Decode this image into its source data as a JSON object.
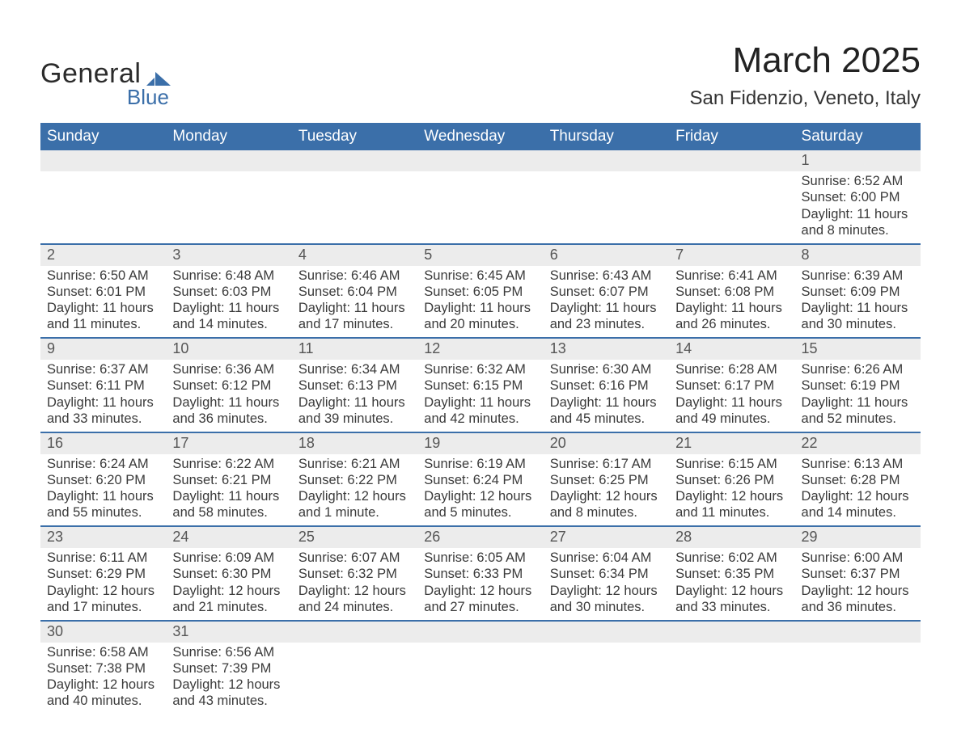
{
  "logo": {
    "general": "General",
    "blue": "Blue"
  },
  "title": "March 2025",
  "location": "San Fidenzio, Veneto, Italy",
  "columns": [
    "Sunday",
    "Monday",
    "Tuesday",
    "Wednesday",
    "Thursday",
    "Friday",
    "Saturday"
  ],
  "colors": {
    "header_bg": "#3b6fa9",
    "header_fg": "#ffffff",
    "daynum_bg": "#ececec",
    "row_divider": "#3b6fa9",
    "text": "#3a3a3a",
    "title": "#222222"
  },
  "typography": {
    "title_fontsize": 44,
    "location_fontsize": 24,
    "header_fontsize": 19,
    "daynum_fontsize": 18,
    "content_fontsize": 16.5
  },
  "weeks": [
    [
      {
        "n": "",
        "sunrise": "",
        "sunset": "",
        "daylight": ""
      },
      {
        "n": "",
        "sunrise": "",
        "sunset": "",
        "daylight": ""
      },
      {
        "n": "",
        "sunrise": "",
        "sunset": "",
        "daylight": ""
      },
      {
        "n": "",
        "sunrise": "",
        "sunset": "",
        "daylight": ""
      },
      {
        "n": "",
        "sunrise": "",
        "sunset": "",
        "daylight": ""
      },
      {
        "n": "",
        "sunrise": "",
        "sunset": "",
        "daylight": ""
      },
      {
        "n": "1",
        "sunrise": "Sunrise: 6:52 AM",
        "sunset": "Sunset: 6:00 PM",
        "daylight": "Daylight: 11 hours and 8 minutes."
      }
    ],
    [
      {
        "n": "2",
        "sunrise": "Sunrise: 6:50 AM",
        "sunset": "Sunset: 6:01 PM",
        "daylight": "Daylight: 11 hours and 11 minutes."
      },
      {
        "n": "3",
        "sunrise": "Sunrise: 6:48 AM",
        "sunset": "Sunset: 6:03 PM",
        "daylight": "Daylight: 11 hours and 14 minutes."
      },
      {
        "n": "4",
        "sunrise": "Sunrise: 6:46 AM",
        "sunset": "Sunset: 6:04 PM",
        "daylight": "Daylight: 11 hours and 17 minutes."
      },
      {
        "n": "5",
        "sunrise": "Sunrise: 6:45 AM",
        "sunset": "Sunset: 6:05 PM",
        "daylight": "Daylight: 11 hours and 20 minutes."
      },
      {
        "n": "6",
        "sunrise": "Sunrise: 6:43 AM",
        "sunset": "Sunset: 6:07 PM",
        "daylight": "Daylight: 11 hours and 23 minutes."
      },
      {
        "n": "7",
        "sunrise": "Sunrise: 6:41 AM",
        "sunset": "Sunset: 6:08 PM",
        "daylight": "Daylight: 11 hours and 26 minutes."
      },
      {
        "n": "8",
        "sunrise": "Sunrise: 6:39 AM",
        "sunset": "Sunset: 6:09 PM",
        "daylight": "Daylight: 11 hours and 30 minutes."
      }
    ],
    [
      {
        "n": "9",
        "sunrise": "Sunrise: 6:37 AM",
        "sunset": "Sunset: 6:11 PM",
        "daylight": "Daylight: 11 hours and 33 minutes."
      },
      {
        "n": "10",
        "sunrise": "Sunrise: 6:36 AM",
        "sunset": "Sunset: 6:12 PM",
        "daylight": "Daylight: 11 hours and 36 minutes."
      },
      {
        "n": "11",
        "sunrise": "Sunrise: 6:34 AM",
        "sunset": "Sunset: 6:13 PM",
        "daylight": "Daylight: 11 hours and 39 minutes."
      },
      {
        "n": "12",
        "sunrise": "Sunrise: 6:32 AM",
        "sunset": "Sunset: 6:15 PM",
        "daylight": "Daylight: 11 hours and 42 minutes."
      },
      {
        "n": "13",
        "sunrise": "Sunrise: 6:30 AM",
        "sunset": "Sunset: 6:16 PM",
        "daylight": "Daylight: 11 hours and 45 minutes."
      },
      {
        "n": "14",
        "sunrise": "Sunrise: 6:28 AM",
        "sunset": "Sunset: 6:17 PM",
        "daylight": "Daylight: 11 hours and 49 minutes."
      },
      {
        "n": "15",
        "sunrise": "Sunrise: 6:26 AM",
        "sunset": "Sunset: 6:19 PM",
        "daylight": "Daylight: 11 hours and 52 minutes."
      }
    ],
    [
      {
        "n": "16",
        "sunrise": "Sunrise: 6:24 AM",
        "sunset": "Sunset: 6:20 PM",
        "daylight": "Daylight: 11 hours and 55 minutes."
      },
      {
        "n": "17",
        "sunrise": "Sunrise: 6:22 AM",
        "sunset": "Sunset: 6:21 PM",
        "daylight": "Daylight: 11 hours and 58 minutes."
      },
      {
        "n": "18",
        "sunrise": "Sunrise: 6:21 AM",
        "sunset": "Sunset: 6:22 PM",
        "daylight": "Daylight: 12 hours and 1 minute."
      },
      {
        "n": "19",
        "sunrise": "Sunrise: 6:19 AM",
        "sunset": "Sunset: 6:24 PM",
        "daylight": "Daylight: 12 hours and 5 minutes."
      },
      {
        "n": "20",
        "sunrise": "Sunrise: 6:17 AM",
        "sunset": "Sunset: 6:25 PM",
        "daylight": "Daylight: 12 hours and 8 minutes."
      },
      {
        "n": "21",
        "sunrise": "Sunrise: 6:15 AM",
        "sunset": "Sunset: 6:26 PM",
        "daylight": "Daylight: 12 hours and 11 minutes."
      },
      {
        "n": "22",
        "sunrise": "Sunrise: 6:13 AM",
        "sunset": "Sunset: 6:28 PM",
        "daylight": "Daylight: 12 hours and 14 minutes."
      }
    ],
    [
      {
        "n": "23",
        "sunrise": "Sunrise: 6:11 AM",
        "sunset": "Sunset: 6:29 PM",
        "daylight": "Daylight: 12 hours and 17 minutes."
      },
      {
        "n": "24",
        "sunrise": "Sunrise: 6:09 AM",
        "sunset": "Sunset: 6:30 PM",
        "daylight": "Daylight: 12 hours and 21 minutes."
      },
      {
        "n": "25",
        "sunrise": "Sunrise: 6:07 AM",
        "sunset": "Sunset: 6:32 PM",
        "daylight": "Daylight: 12 hours and 24 minutes."
      },
      {
        "n": "26",
        "sunrise": "Sunrise: 6:05 AM",
        "sunset": "Sunset: 6:33 PM",
        "daylight": "Daylight: 12 hours and 27 minutes."
      },
      {
        "n": "27",
        "sunrise": "Sunrise: 6:04 AM",
        "sunset": "Sunset: 6:34 PM",
        "daylight": "Daylight: 12 hours and 30 minutes."
      },
      {
        "n": "28",
        "sunrise": "Sunrise: 6:02 AM",
        "sunset": "Sunset: 6:35 PM",
        "daylight": "Daylight: 12 hours and 33 minutes."
      },
      {
        "n": "29",
        "sunrise": "Sunrise: 6:00 AM",
        "sunset": "Sunset: 6:37 PM",
        "daylight": "Daylight: 12 hours and 36 minutes."
      }
    ],
    [
      {
        "n": "30",
        "sunrise": "Sunrise: 6:58 AM",
        "sunset": "Sunset: 7:38 PM",
        "daylight": "Daylight: 12 hours and 40 minutes."
      },
      {
        "n": "31",
        "sunrise": "Sunrise: 6:56 AM",
        "sunset": "Sunset: 7:39 PM",
        "daylight": "Daylight: 12 hours and 43 minutes."
      },
      {
        "n": "",
        "sunrise": "",
        "sunset": "",
        "daylight": ""
      },
      {
        "n": "",
        "sunrise": "",
        "sunset": "",
        "daylight": ""
      },
      {
        "n": "",
        "sunrise": "",
        "sunset": "",
        "daylight": ""
      },
      {
        "n": "",
        "sunrise": "",
        "sunset": "",
        "daylight": ""
      },
      {
        "n": "",
        "sunrise": "",
        "sunset": "",
        "daylight": ""
      }
    ]
  ]
}
